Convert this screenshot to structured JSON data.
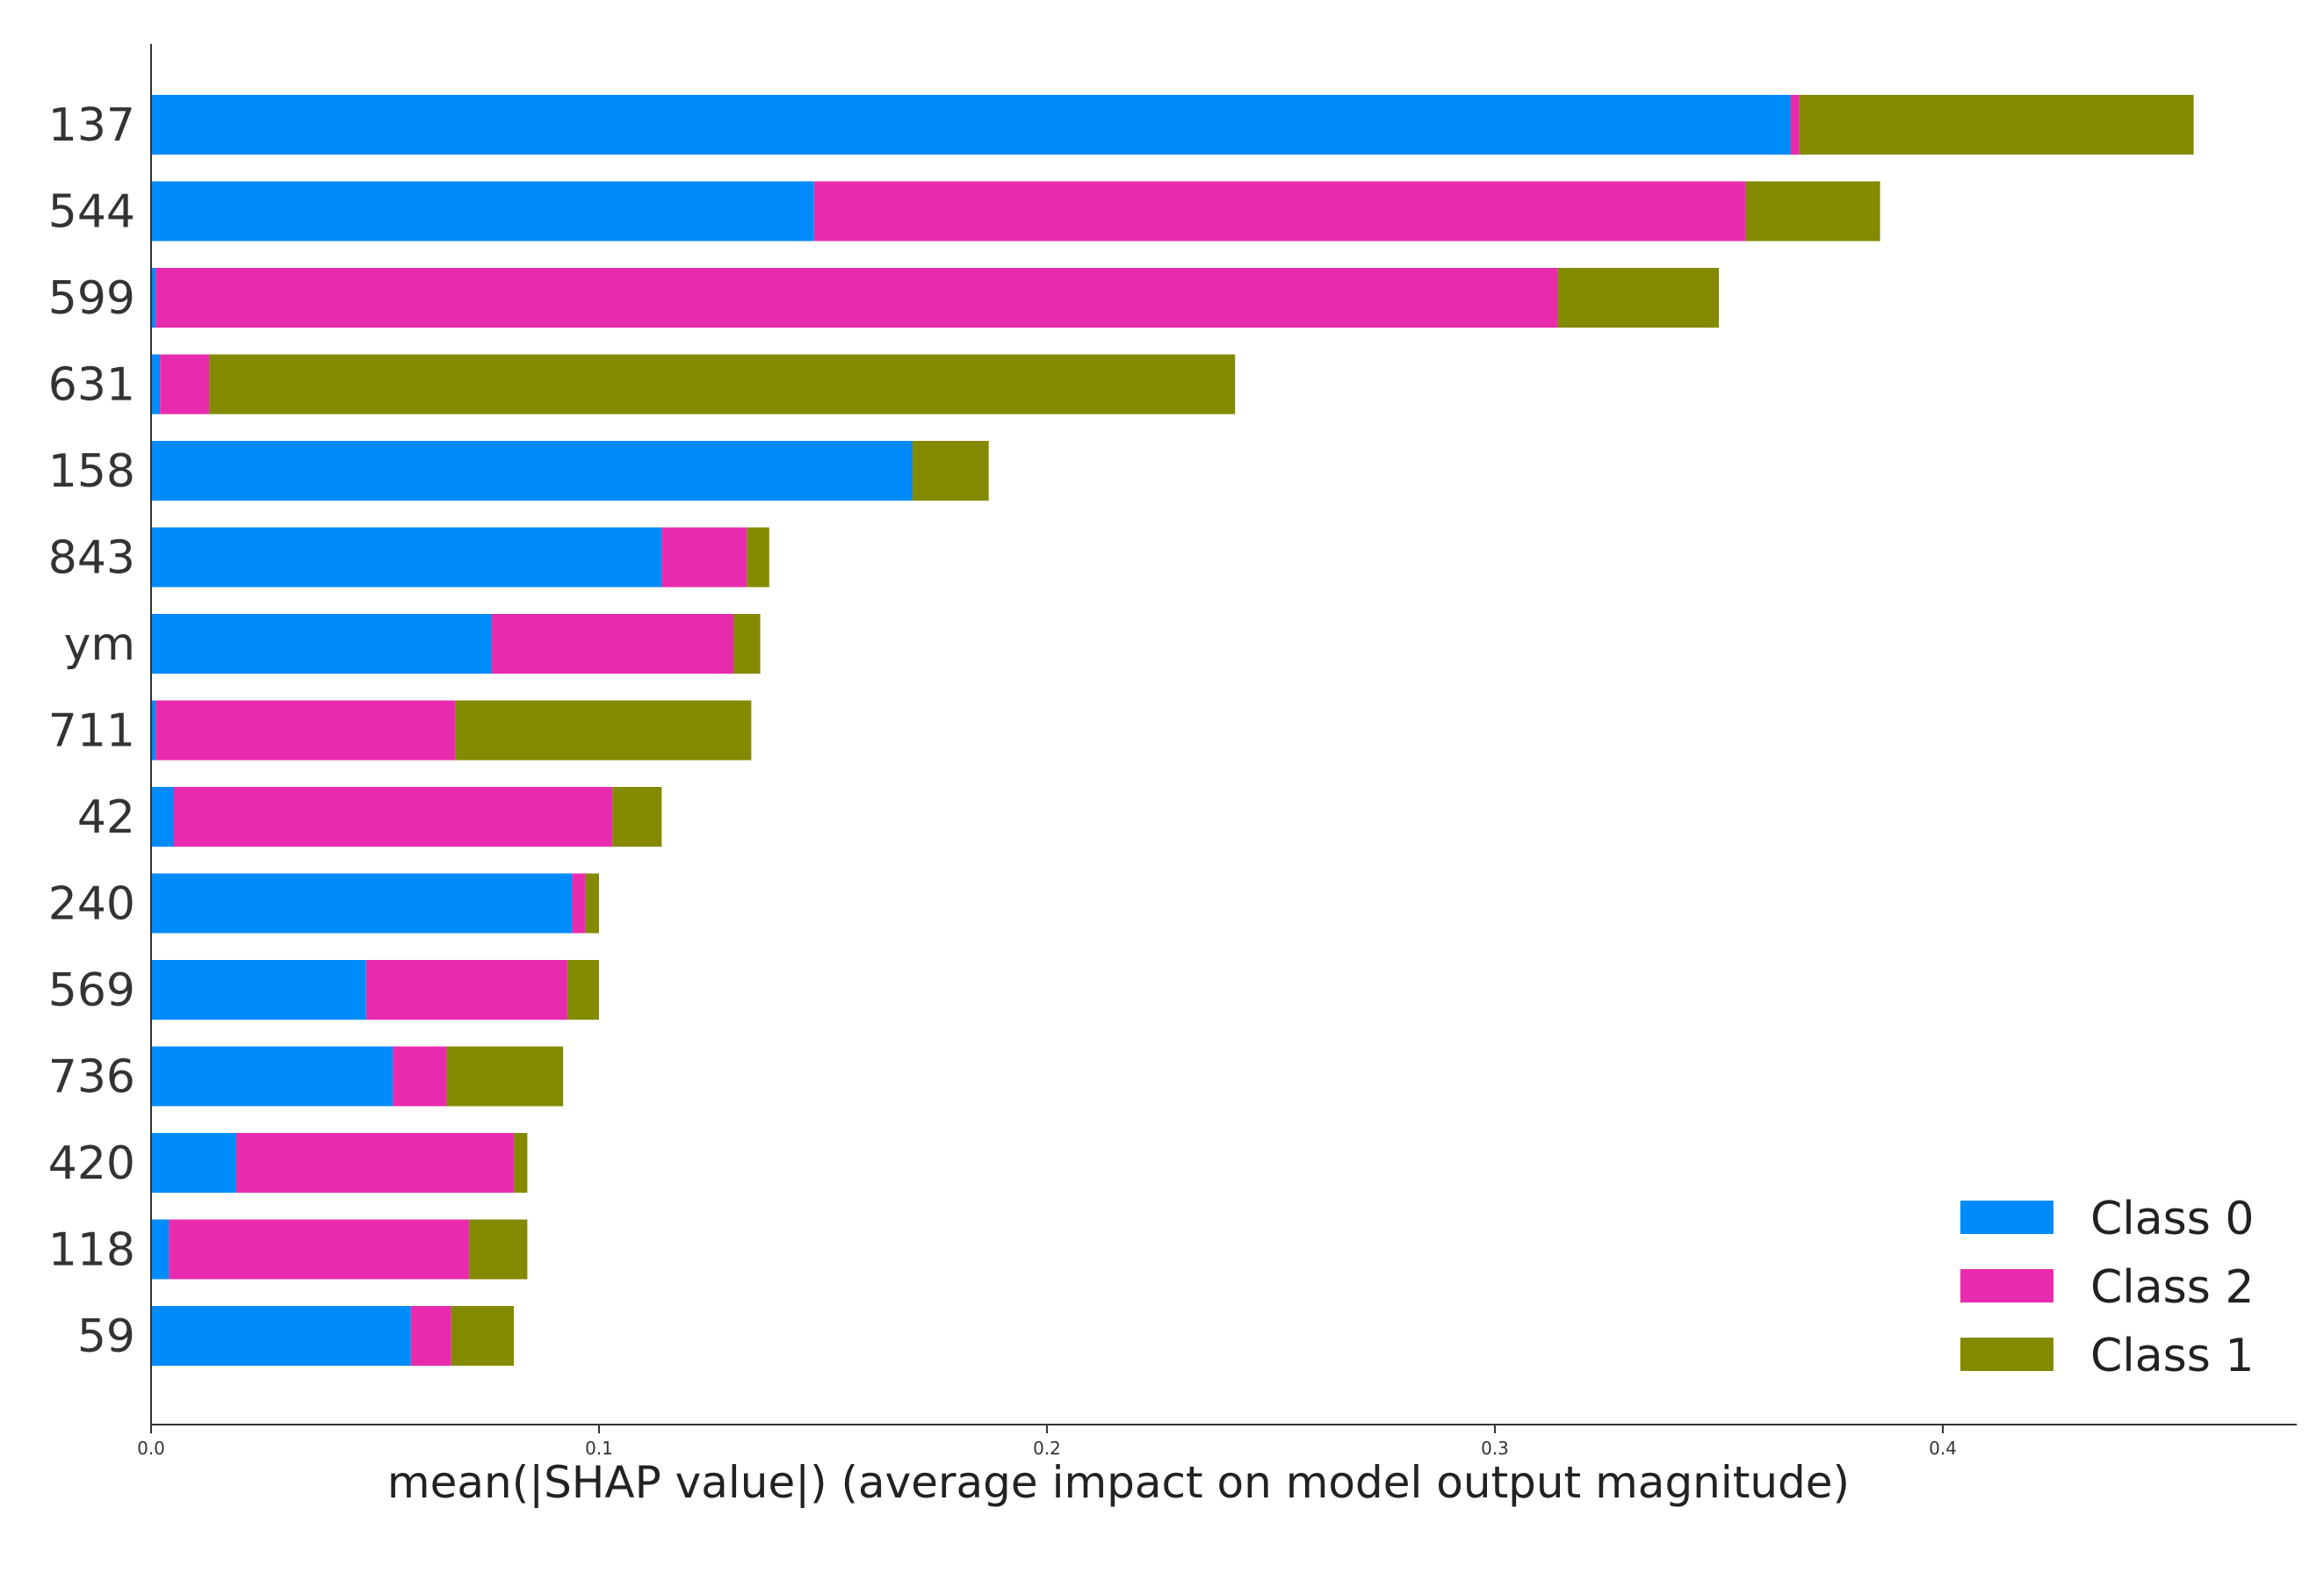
{
  "chart_data": {
    "type": "bar",
    "orientation": "horizontal",
    "stacked": true,
    "title": "",
    "xlabel": "mean(|SHAP value|) (average impact on model output magnitude)",
    "ylabel": "",
    "xlim": [
      0,
      0.48
    ],
    "xticks": [
      "0.0",
      "0.1",
      "0.2",
      "0.3",
      "0.4"
    ],
    "categories": [
      "137",
      "544",
      "599",
      "631",
      "158",
      "843",
      "ym",
      "711",
      "42",
      "240",
      "569",
      "736",
      "420",
      "118",
      "59"
    ],
    "series": [
      {
        "name": "Class 0",
        "color": "#008bfb",
        "values": [
          0.366,
          0.148,
          0.001,
          0.002,
          0.17,
          0.114,
          0.076,
          0.001,
          0.005,
          0.094,
          0.048,
          0.054,
          0.019,
          0.004,
          0.058
        ]
      },
      {
        "name": "Class 2",
        "color": "#e82bae",
        "values": [
          0.002,
          0.208,
          0.313,
          0.011,
          0.0,
          0.019,
          0.054,
          0.067,
          0.098,
          0.003,
          0.045,
          0.012,
          0.062,
          0.067,
          0.009
        ]
      },
      {
        "name": "Class 1",
        "color": "#838a00",
        "values": [
          0.088,
          0.03,
          0.036,
          0.229,
          0.017,
          0.005,
          0.006,
          0.066,
          0.011,
          0.003,
          0.007,
          0.026,
          0.003,
          0.013,
          0.014
        ]
      }
    ],
    "legend": {
      "position": "bottom-right",
      "entries": [
        "Class 0",
        "Class 2",
        "Class 1"
      ]
    }
  }
}
